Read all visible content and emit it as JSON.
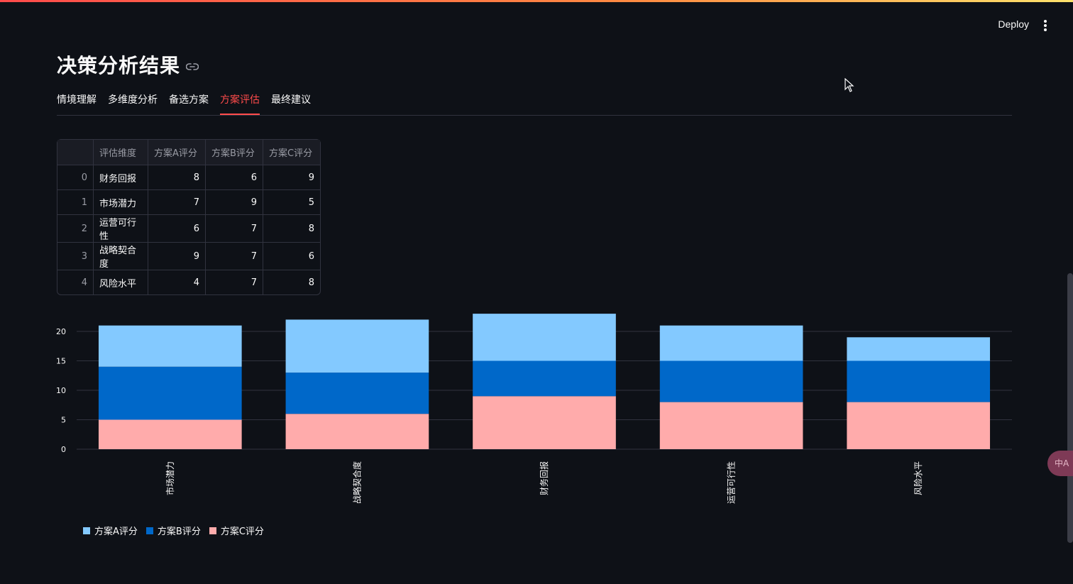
{
  "header": {
    "deploy_label": "Deploy",
    "menu_icon": "kebab-menu-icon"
  },
  "page": {
    "title": "决策分析结果",
    "title_link_icon": "link-icon"
  },
  "tabs": [
    {
      "label": "情境理解",
      "active": false
    },
    {
      "label": "多维度分析",
      "active": false
    },
    {
      "label": "备选方案",
      "active": false
    },
    {
      "label": "方案评估",
      "active": true
    },
    {
      "label": "最终建议",
      "active": false
    }
  ],
  "table": {
    "columns": [
      "",
      "评估维度",
      "方案A评分",
      "方案B评分",
      "方案C评分"
    ],
    "rows": [
      {
        "index": "0",
        "dimension": "财务回报",
        "a": "8",
        "b": "6",
        "c": "9"
      },
      {
        "index": "1",
        "dimension": "市场潜力",
        "a": "7",
        "b": "9",
        "c": "5"
      },
      {
        "index": "2",
        "dimension": "运营可行性",
        "a": "6",
        "b": "7",
        "c": "8"
      },
      {
        "index": "3",
        "dimension": "战略契合度",
        "a": "9",
        "b": "7",
        "c": "6"
      },
      {
        "index": "4",
        "dimension": "风险水平",
        "a": "4",
        "b": "7",
        "c": "8"
      }
    ]
  },
  "chart_data": {
    "type": "bar",
    "stacked": true,
    "categories": [
      "市场潜力",
      "战略契合度",
      "财务回报",
      "运营可行性",
      "风险水平"
    ],
    "series": [
      {
        "name": "方案C评分",
        "color": "#ffabab",
        "values": [
          5,
          6,
          9,
          8,
          8
        ]
      },
      {
        "name": "方案B评分",
        "color": "#0068c9",
        "values": [
          9,
          7,
          6,
          7,
          7
        ]
      },
      {
        "name": "方案A评分",
        "color": "#83c9ff",
        "values": [
          7,
          9,
          8,
          6,
          4
        ]
      }
    ],
    "yticks": [
      0,
      5,
      10,
      15,
      20
    ],
    "ylim": [
      0,
      24
    ],
    "grid": true,
    "legend_position": "bottom-left"
  },
  "legend": [
    {
      "label": "方案A评分",
      "color": "#83c9ff"
    },
    {
      "label": "方案B评分",
      "color": "#0068c9"
    },
    {
      "label": "方案C评分",
      "color": "#ffabab"
    }
  ],
  "widgets": {
    "translate_label": "中A"
  }
}
